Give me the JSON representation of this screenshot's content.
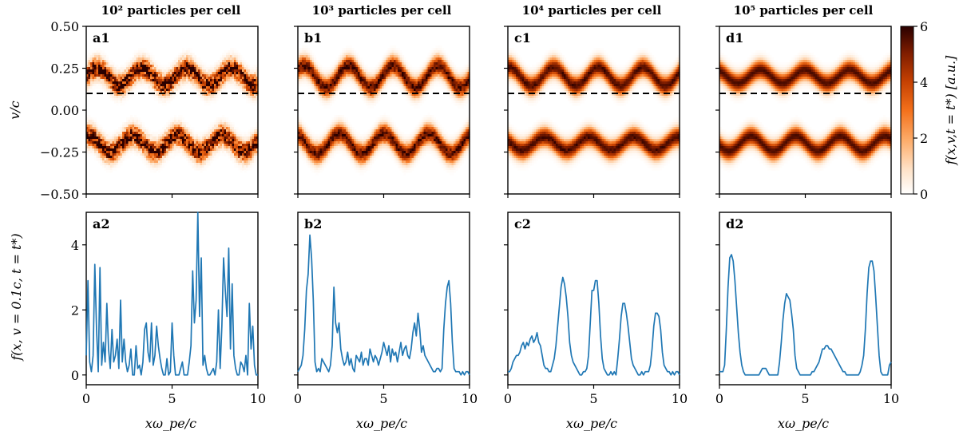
{
  "chart_data": {
    "type": "heatmap",
    "columns": [
      {
        "title": "10² particles per cell",
        "top_label": "a1",
        "bottom_label": "a2",
        "amp_upper": 0.05,
        "amp_lower": 0.05,
        "noise": 1.0,
        "line_values": [
          0.6,
          2.9,
          0.4,
          0.1,
          0.6,
          3.4,
          1.4,
          0.1,
          3.3,
          0.3,
          1.0,
          0.4,
          2.2,
          0.8,
          0.2,
          1.4,
          0.4,
          0.6,
          1.1,
          0.2,
          2.3,
          0.4,
          1.1,
          0.4,
          0.1,
          0.3,
          0.8,
          0.0,
          0.0,
          0.9,
          0.2,
          0.3,
          0.0,
          0.4,
          1.4,
          1.6,
          0.7,
          0.4,
          1.6,
          0.3,
          0.6,
          1.5,
          0.9,
          0.5,
          0.2,
          0.0,
          0.0,
          0.5,
          0.0,
          0.1,
          1.6,
          0.6,
          0.0,
          0.0,
          0.0,
          0.2,
          0.4,
          0.0,
          0.0,
          0.0,
          0.4,
          0.9,
          3.2,
          1.6,
          2.3,
          5.0,
          1.8,
          3.6,
          0.3,
          0.6,
          0.2,
          0.0,
          0.0,
          0.1,
          0.2,
          0.0,
          0.4,
          2.0,
          0.2,
          1.5,
          3.6,
          2.6,
          1.8,
          3.9,
          0.8,
          2.8,
          0.6,
          0.2,
          0.0,
          0.0,
          0.4,
          0.3,
          0.1,
          0.6,
          0.0,
          2.2,
          0.8,
          1.5,
          0.3,
          0.0,
          0.0
        ]
      },
      {
        "title": "10³ particles per cell",
        "top_label": "b1",
        "bottom_label": "b2",
        "amp_upper": 0.065,
        "amp_lower": 0.06,
        "noise": 0.35,
        "line_values": [
          0.1,
          0.2,
          0.3,
          0.6,
          1.4,
          2.6,
          3.1,
          4.3,
          3.6,
          2.3,
          0.4,
          0.1,
          0.2,
          0.1,
          0.5,
          0.4,
          0.3,
          0.2,
          0.1,
          0.3,
          0.9,
          2.7,
          1.6,
          1.3,
          1.6,
          0.8,
          0.5,
          0.3,
          0.4,
          0.7,
          0.3,
          0.5,
          0.2,
          0.1,
          0.6,
          0.5,
          0.4,
          0.7,
          0.3,
          0.5,
          0.5,
          0.3,
          0.8,
          0.6,
          0.4,
          0.6,
          0.5,
          0.3,
          0.5,
          0.7,
          1.0,
          0.8,
          0.6,
          0.9,
          0.4,
          0.8,
          0.6,
          0.7,
          0.4,
          0.7,
          1.0,
          0.6,
          0.8,
          0.9,
          0.6,
          0.5,
          0.8,
          1.3,
          1.6,
          1.2,
          1.9,
          1.4,
          0.7,
          0.9,
          0.6,
          0.5,
          0.4,
          0.3,
          0.2,
          0.1,
          0.1,
          0.2,
          0.2,
          0.1,
          0.2,
          1.4,
          2.2,
          2.7,
          2.9,
          2.2,
          1.0,
          0.2,
          0.1,
          0.1,
          0.1,
          0.0,
          0.1,
          0.0,
          0.1,
          0.1,
          0.0
        ]
      },
      {
        "title": "10⁴ particles per cell",
        "top_label": "c1",
        "bottom_label": "c2",
        "amp_upper": 0.055,
        "amp_lower": 0.04,
        "noise": 0.12,
        "line_values": [
          0.1,
          0.1,
          0.2,
          0.4,
          0.5,
          0.6,
          0.6,
          0.7,
          0.9,
          1.0,
          0.8,
          1.0,
          0.9,
          1.1,
          1.2,
          1.0,
          1.1,
          1.3,
          1.0,
          0.9,
          0.6,
          0.3,
          0.2,
          0.2,
          0.1,
          0.1,
          0.3,
          0.5,
          0.9,
          1.5,
          2.1,
          2.7,
          3.0,
          2.8,
          2.4,
          1.8,
          1.0,
          0.6,
          0.4,
          0.3,
          0.2,
          0.1,
          0.0,
          0.0,
          0.1,
          0.1,
          0.2,
          0.6,
          1.6,
          2.6,
          2.6,
          2.9,
          2.9,
          2.2,
          1.2,
          0.5,
          0.2,
          0.1,
          0.0,
          0.0,
          0.1,
          0.0,
          0.1,
          0.0,
          0.5,
          1.1,
          1.8,
          2.2,
          2.2,
          1.9,
          1.5,
          1.0,
          0.5,
          0.3,
          0.2,
          0.1,
          0.0,
          0.0,
          0.1,
          0.0,
          0.1,
          0.1,
          0.1,
          0.3,
          0.8,
          1.5,
          1.9,
          1.9,
          1.8,
          1.4,
          0.7,
          0.3,
          0.2,
          0.1,
          0.1,
          0.0,
          0.1,
          0.0,
          0.1,
          0.1,
          0.0
        ]
      },
      {
        "title": "10⁵ particles per cell",
        "top_label": "d1",
        "bottom_label": "d2",
        "amp_upper": 0.04,
        "amp_lower": 0.045,
        "noise": 0.04,
        "line_values": [
          0.1,
          0.1,
          0.1,
          0.3,
          1.4,
          2.7,
          3.6,
          3.7,
          3.5,
          2.9,
          2.1,
          1.3,
          0.7,
          0.3,
          0.1,
          0.0,
          0.0,
          0.0,
          0.0,
          0.0,
          0.0,
          0.0,
          0.0,
          0.0,
          0.1,
          0.2,
          0.2,
          0.2,
          0.1,
          0.0,
          0.0,
          0.0,
          0.0,
          0.0,
          0.0,
          0.4,
          1.0,
          1.7,
          2.2,
          2.5,
          2.4,
          2.3,
          1.9,
          1.4,
          0.6,
          0.2,
          0.1,
          0.0,
          0.0,
          0.0,
          0.0,
          0.0,
          0.0,
          0.0,
          0.1,
          0.1,
          0.2,
          0.3,
          0.4,
          0.6,
          0.8,
          0.8,
          0.9,
          0.9,
          0.8,
          0.8,
          0.7,
          0.6,
          0.5,
          0.4,
          0.3,
          0.2,
          0.1,
          0.1,
          0.0,
          0.0,
          0.0,
          0.0,
          0.0,
          0.0,
          0.0,
          0.0,
          0.1,
          0.3,
          0.6,
          1.4,
          2.5,
          3.3,
          3.5,
          3.5,
          3.2,
          2.4,
          1.5,
          0.6,
          0.1,
          0.0,
          0.0,
          0.0,
          0.0,
          0.3,
          0.4
        ]
      }
    ],
    "top_row": {
      "ylabel": "v/c",
      "ylim": [
        -0.5,
        0.5
      ],
      "yticks": [
        "0.50",
        "0.25",
        "0.00",
        "−0.25",
        "−0.50"
      ],
      "ytick_values": [
        0.5,
        0.25,
        0.0,
        -0.25,
        -0.5
      ],
      "beam_centers": [
        0.2,
        -0.2
      ],
      "dashed_line_v": 0.1
    },
    "bottom_row": {
      "ylabel": "f(x, v = 0.1c, t = t*)",
      "ylim": [
        -0.3,
        5.0
      ],
      "yticks": [
        "0",
        "2",
        "4"
      ],
      "ytick_values": [
        0,
        2,
        4
      ],
      "line_color": "#1f77b4"
    },
    "xaxis": {
      "xlabel": "xω_pe/c",
      "xlim": [
        0,
        10
      ],
      "xticks": [
        "0",
        "5",
        "10"
      ],
      "xtick_values": [
        0,
        5,
        10
      ]
    },
    "colorbar": {
      "label": "f(x,v,t = t*) [a.u.]",
      "range": [
        0,
        6
      ],
      "ticks": [
        "0",
        "2",
        "4",
        "6"
      ],
      "tick_values": [
        0,
        2,
        4,
        6
      ],
      "colormap": [
        "#ffffff",
        "#fee1c6",
        "#fdac6a",
        "#f3701b",
        "#c54102",
        "#7f1d00",
        "#2a0000"
      ]
    }
  }
}
